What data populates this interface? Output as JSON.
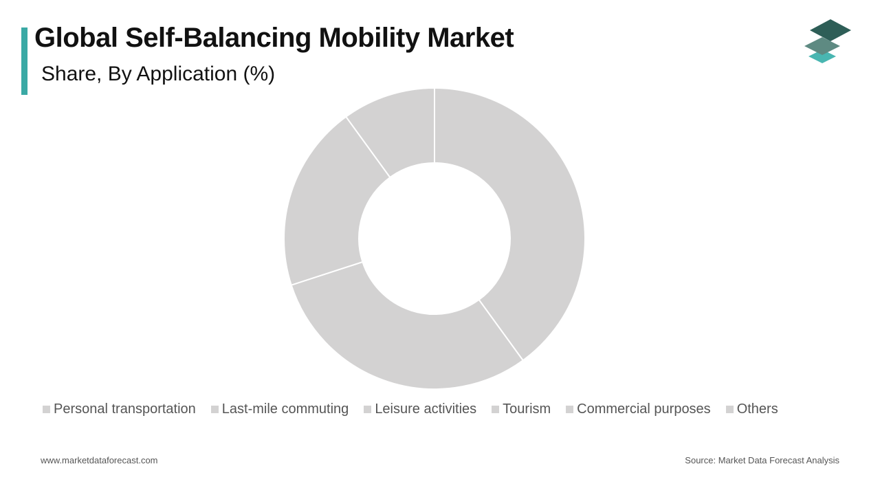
{
  "header": {
    "title": "Global Self-Balancing Mobility Market",
    "subtitle": "Share, By Application (%)"
  },
  "footer": {
    "website": "www.marketdataforecast.com",
    "source": "Source: Market Data Forecast Analysis"
  },
  "colors": {
    "accent": "#3aa9a5",
    "slice_fill": "#d3d2d2",
    "slice_border": "#ffffff",
    "logo_dark": "#2e5e57",
    "logo_mid": "#5e8a82",
    "logo_light": "#49b6b1"
  },
  "icons": {
    "logo": "stacked-layers-icon"
  },
  "chart_data": {
    "type": "pie",
    "variant": "donut",
    "title": "",
    "legend_position": "bottom",
    "categories": [
      "Personal transportation",
      "Last-mile commuting",
      "Leisure activities",
      "Tourism",
      "Commercial purposes",
      "Others"
    ],
    "values": [
      40,
      30,
      20,
      10,
      0,
      0
    ]
  }
}
